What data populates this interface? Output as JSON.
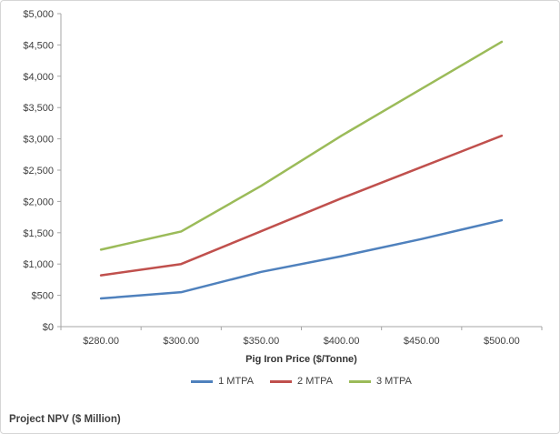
{
  "caption": "Project NPV ($ Million)",
  "colors": {
    "axis": "#a6a6a6",
    "tick_text": "#404040",
    "background": "#ffffff",
    "border": "#d6d6d6"
  },
  "chart_data": {
    "type": "line",
    "title": "",
    "xlabel": "Pig Iron Price ($/Tonne)",
    "ylabel": "Project NPV ($ Million)",
    "categories": [
      "$280.00",
      "$300.00",
      "$350.00",
      "$400.00",
      "$450.00",
      "$500.00"
    ],
    "series": [
      {
        "name": "1 MTPA",
        "color": "#4F81BD",
        "values": [
          450,
          550,
          875,
          1125,
          1400,
          1700
        ]
      },
      {
        "name": "2 MTPA",
        "color": "#C0504D",
        "values": [
          820,
          1000,
          1525,
          2050,
          2550,
          3050
        ]
      },
      {
        "name": "3 MTPA",
        "color": "#9BBB59",
        "values": [
          1230,
          1520,
          2250,
          3050,
          3800,
          4550
        ]
      }
    ],
    "ylim": [
      0,
      5000
    ],
    "ytick_step": 500,
    "ytick_labels": [
      "$0",
      "$500",
      "$1,000",
      "$1,500",
      "$2,000",
      "$2,500",
      "$3,000",
      "$3,500",
      "$4,000",
      "$4,500",
      "$5,000"
    ],
    "grid": false,
    "legend_position": "bottom"
  }
}
